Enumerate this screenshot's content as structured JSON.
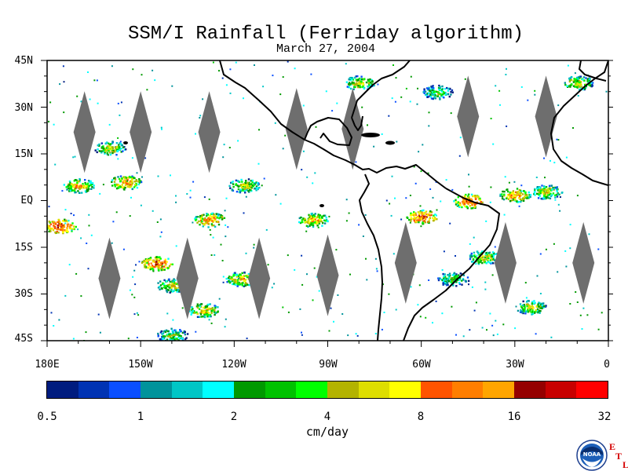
{
  "title": "SSM/I Rainfall (Ferriday algorithm)",
  "date": "March 27, 2004",
  "lat_labels": [
    "45N",
    "30N",
    "15N",
    "EQ",
    "15S",
    "30S",
    "45S"
  ],
  "lon_labels": [
    "180E",
    "150W",
    "120W",
    "90W",
    "60W",
    "30W",
    "0"
  ],
  "colorbar": {
    "tick_labels": [
      "0.5",
      "1",
      "2",
      "4",
      "8",
      "16",
      "32"
    ],
    "unit": "cm/day",
    "colors": [
      "#001c7f",
      "#0033b3",
      "#0a4fff",
      "#00939b",
      "#00c6c6",
      "#00ffff",
      "#009900",
      "#00c200",
      "#00ff00",
      "#b3b300",
      "#dede00",
      "#ffff00",
      "#ff5400",
      "#ff7e00",
      "#ffa500",
      "#950000",
      "#c80000",
      "#ff0000"
    ]
  },
  "logo": {
    "text": "NOAA",
    "letters": [
      "E",
      "T",
      "L"
    ]
  },
  "chart_data": {
    "type": "heatmap",
    "title": "SSM/I Rainfall (Ferriday algorithm)",
    "subtitle": "March 27, 2004",
    "xlabel": "",
    "ylabel": "",
    "lon_range": [
      -180,
      0
    ],
    "lat_range": [
      -45,
      45
    ],
    "colorscale_bounds": [
      0.5,
      32
    ],
    "colorscale_log": true,
    "unit": "cm/day",
    "no_data_swath_gaps": "grey diamonds",
    "rain_regions": [
      {
        "lon": -176,
        "lat": -8,
        "rate": 20
      },
      {
        "lon": -170,
        "lat": 5,
        "rate": 8
      },
      {
        "lon": -155,
        "lat": 6,
        "rate": 10
      },
      {
        "lon": -160,
        "lat": 17,
        "rate": 6
      },
      {
        "lon": -145,
        "lat": -20,
        "rate": 16
      },
      {
        "lon": -140,
        "lat": -27,
        "rate": 6
      },
      {
        "lon": -130,
        "lat": -35,
        "rate": 8
      },
      {
        "lon": -140,
        "lat": -43,
        "rate": 4
      },
      {
        "lon": -128,
        "lat": -6,
        "rate": 12
      },
      {
        "lon": -117,
        "lat": 5,
        "rate": 6
      },
      {
        "lon": -118,
        "lat": -25,
        "rate": 8
      },
      {
        "lon": -95,
        "lat": -6,
        "rate": 8
      },
      {
        "lon": -60,
        "lat": -5,
        "rate": 16
      },
      {
        "lon": -50,
        "lat": -25,
        "rate": 4
      },
      {
        "lon": -40,
        "lat": -18,
        "rate": 6
      },
      {
        "lon": -45,
        "lat": 0,
        "rate": 16
      },
      {
        "lon": -30,
        "lat": 2,
        "rate": 10
      },
      {
        "lon": -20,
        "lat": 3,
        "rate": 6
      },
      {
        "lon": -25,
        "lat": -34,
        "rate": 6
      },
      {
        "lon": -80,
        "lat": 38,
        "rate": 6
      },
      {
        "lon": -55,
        "lat": 35,
        "rate": 4
      },
      {
        "lon": -10,
        "lat": 38,
        "rate": 6
      }
    ]
  }
}
